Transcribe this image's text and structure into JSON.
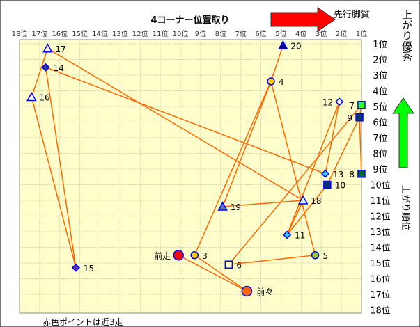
{
  "chart_data": {
    "type": "scatter",
    "title": "4コーナー位置取り",
    "xlabel": "先行脚質",
    "ylabel": "上がり順位",
    "ylabel_top": "上がり優秀",
    "note": "赤色ポイントは近3走",
    "x_ticks": [
      "18位",
      "17位",
      "16位",
      "15位",
      "14位",
      "13位",
      "12位",
      "11位",
      "10位",
      "9位",
      "8位",
      "7位",
      "6位",
      "5位",
      "4位",
      "3位",
      "2位",
      "1位"
    ],
    "y_ticks": [
      "1位",
      "2位",
      "3位",
      "4位",
      "5位",
      "6位",
      "7位",
      "8位",
      "9位",
      "10位",
      "11位",
      "12位",
      "13位",
      "14位",
      "15位",
      "16位",
      "17位",
      "18位"
    ],
    "xlim": [
      18,
      1
    ],
    "ylim": [
      1,
      18
    ],
    "grid": true,
    "colors": {
      "plot_bg": "#ffffcc",
      "line": "#ff6600",
      "arrow_x": "#ff0000",
      "arrow_y": "#00ff00"
    },
    "points": [
      {
        "label": "17",
        "x": 16.6,
        "y": 1.3,
        "shape": "triangle",
        "fill": "#ffffff"
      },
      {
        "label": "20",
        "x": 4.9,
        "y": 1.1,
        "shape": "triangle",
        "fill": "#000080"
      },
      {
        "label": "14",
        "x": 16.7,
        "y": 2.5,
        "shape": "diamond",
        "fill": "#3333aa"
      },
      {
        "label": "4",
        "x": 5.5,
        "y": 3.4,
        "shape": "circle",
        "fill": "#ffcc00"
      },
      {
        "label": "16",
        "x": 17.4,
        "y": 4.4,
        "shape": "triangle",
        "fill": "#ffffff"
      },
      {
        "label": "12",
        "x": 2.1,
        "y": 4.7,
        "shape": "diamond",
        "fill": "#ffffff"
      },
      {
        "label": "7",
        "x": 1.0,
        "y": 4.9,
        "shape": "square",
        "fill": "#33ff33"
      },
      {
        "label": "9",
        "x": 1.1,
        "y": 5.7,
        "shape": "square",
        "fill": "#003366"
      },
      {
        "label": "13",
        "x": 2.8,
        "y": 9.3,
        "shape": "diamond",
        "fill": "#33ccff"
      },
      {
        "label": "8",
        "x": 1.0,
        "y": 9.3,
        "shape": "square",
        "fill": "#006633"
      },
      {
        "label": "10",
        "x": 2.7,
        "y": 10.0,
        "shape": "square",
        "fill": "#003366"
      },
      {
        "label": "18",
        "x": 3.9,
        "y": 11.0,
        "shape": "triangle",
        "fill": "#ccffff"
      },
      {
        "label": "19",
        "x": 7.9,
        "y": 11.4,
        "shape": "triangle",
        "fill": "#6677aa"
      },
      {
        "label": "11",
        "x": 4.7,
        "y": 13.2,
        "shape": "diamond",
        "fill": "#33ccff"
      },
      {
        "label": "前走",
        "x": 10.1,
        "y": 14.5,
        "shape": "bigcircle",
        "fill": "#ff0000"
      },
      {
        "label": "3",
        "x": 9.3,
        "y": 14.5,
        "shape": "circle",
        "fill": "#ffcc00"
      },
      {
        "label": "5",
        "x": 3.3,
        "y": 14.5,
        "shape": "circle",
        "fill": "#99cc33"
      },
      {
        "label": "6",
        "x": 7.6,
        "y": 15.1,
        "shape": "square",
        "fill": "#ffffcc"
      },
      {
        "label": "15",
        "x": 15.2,
        "y": 15.3,
        "shape": "diamond",
        "fill": "#6633aa"
      },
      {
        "label": "前々",
        "x": 6.7,
        "y": 16.8,
        "shape": "bigcircle",
        "fill": "#ff6600"
      }
    ],
    "links": [
      [
        "17",
        "16"
      ],
      [
        "17",
        "18"
      ],
      [
        "14",
        "15"
      ],
      [
        "14",
        "13"
      ],
      [
        "16",
        "15"
      ],
      [
        "20",
        "4"
      ],
      [
        "4",
        "19"
      ],
      [
        "4",
        "3"
      ],
      [
        "4",
        "5"
      ],
      [
        "12",
        "13"
      ],
      [
        "12",
        "11"
      ],
      [
        "7",
        "6"
      ],
      [
        "7",
        "9"
      ],
      [
        "9",
        "10"
      ],
      [
        "9",
        "8"
      ],
      [
        "10",
        "11"
      ],
      [
        "18",
        "11"
      ],
      [
        "19",
        "18"
      ],
      [
        "6",
        "5"
      ],
      [
        "前走",
        "前々"
      ],
      [
        "3",
        "前々"
      ]
    ]
  }
}
